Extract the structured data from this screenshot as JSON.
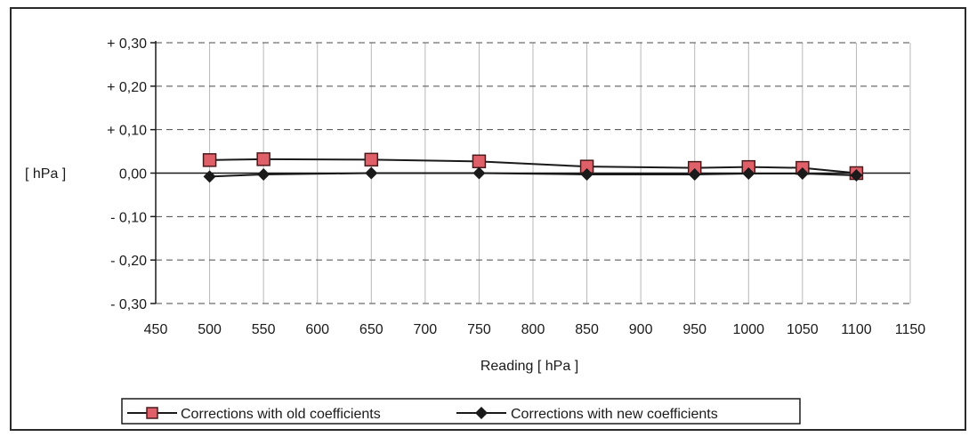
{
  "chart_data": {
    "type": "line",
    "title": "",
    "xlabel": "Reading [ hPa ]",
    "ylabel": "[ hPa ]",
    "xlim": [
      450,
      1150
    ],
    "ylim": [
      -0.3,
      0.3
    ],
    "x_ticks": [
      {
        "value": 450,
        "label": "450"
      },
      {
        "value": 500,
        "label": "500"
      },
      {
        "value": 550,
        "label": "550"
      },
      {
        "value": 600,
        "label": "600"
      },
      {
        "value": 650,
        "label": "650"
      },
      {
        "value": 700,
        "label": "700"
      },
      {
        "value": 750,
        "label": "750"
      },
      {
        "value": 800,
        "label": "800"
      },
      {
        "value": 850,
        "label": "850"
      },
      {
        "value": 900,
        "label": "900"
      },
      {
        "value": 950,
        "label": "950"
      },
      {
        "value": 1000,
        "label": "1000"
      },
      {
        "value": 1050,
        "label": "1050"
      },
      {
        "value": 1100,
        "label": "1100"
      },
      {
        "value": 1150,
        "label": "1150"
      }
    ],
    "y_ticks": [
      {
        "value": 0.3,
        "label": "+ 0,30"
      },
      {
        "value": 0.2,
        "label": "+ 0,20"
      },
      {
        "value": 0.1,
        "label": "+ 0,10"
      },
      {
        "value": 0.0,
        "label": "0,00"
      },
      {
        "value": -0.1,
        "label": "- 0,10"
      },
      {
        "value": -0.2,
        "label": "- 0,20"
      },
      {
        "value": -0.3,
        "label": "- 0,30"
      }
    ],
    "grid": true,
    "legend_position": "bottom",
    "series": [
      {
        "name": "Corrections with old coefficients",
        "marker": "square",
        "color": "#e0606a",
        "line_color": "#1a1a1a",
        "points": [
          {
            "x": 500,
            "y": 0.03
          },
          {
            "x": 550,
            "y": 0.032
          },
          {
            "x": 650,
            "y": 0.031
          },
          {
            "x": 750,
            "y": 0.027
          },
          {
            "x": 850,
            "y": 0.015
          },
          {
            "x": 950,
            "y": 0.012
          },
          {
            "x": 1000,
            "y": 0.014
          },
          {
            "x": 1050,
            "y": 0.012
          },
          {
            "x": 1100,
            "y": 0.0
          }
        ]
      },
      {
        "name": "Corrections with new coefficients",
        "marker": "diamond",
        "color": "#1a1a1a",
        "line_color": "#1a1a1a",
        "points": [
          {
            "x": 500,
            "y": -0.008
          },
          {
            "x": 550,
            "y": -0.003
          },
          {
            "x": 650,
            "y": 0.0
          },
          {
            "x": 750,
            "y": 0.0
          },
          {
            "x": 850,
            "y": -0.003
          },
          {
            "x": 950,
            "y": -0.003
          },
          {
            "x": 1000,
            "y": -0.001
          },
          {
            "x": 1050,
            "y": -0.001
          },
          {
            "x": 1100,
            "y": -0.005
          }
        ]
      }
    ]
  }
}
